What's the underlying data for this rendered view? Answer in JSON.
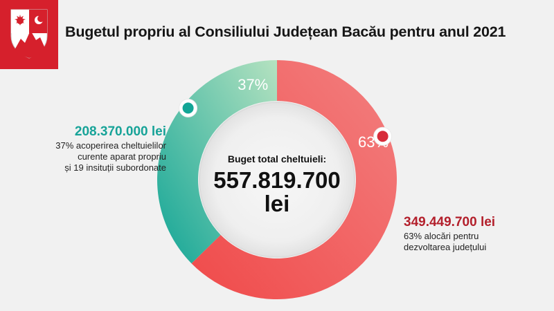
{
  "title": "Bugetul propriu al Consiliului Județean Bacău pentru anul 2021",
  "center": {
    "label": "Buget total cheltuieli:",
    "value": "557.819.700",
    "unit": "lei"
  },
  "colors": {
    "teal_start": "#12a596",
    "teal_end": "#b5e2c0",
    "red_start": "#f04a4a",
    "red_end": "#f38080",
    "teal_text": "#17a398",
    "red_text": "#b3202c",
    "crest_red": "#d6202c"
  },
  "chart_data": {
    "type": "pie",
    "total": 557819700,
    "unit": "lei",
    "slices": [
      {
        "value": 349449700,
        "percent": 63,
        "percent_label": "63%",
        "amount_label": "349.449.700 lei",
        "description": [
          "63% alocări pentru",
          "dezvoltarea județului"
        ]
      },
      {
        "value": 208370000,
        "percent": 37,
        "percent_label": "37%",
        "amount_label": "208.370.000 lei",
        "description": [
          "37% acoperirea cheltuielilor",
          "curente aparat propriu",
          "și 19 insituții subordonate"
        ]
      }
    ]
  }
}
